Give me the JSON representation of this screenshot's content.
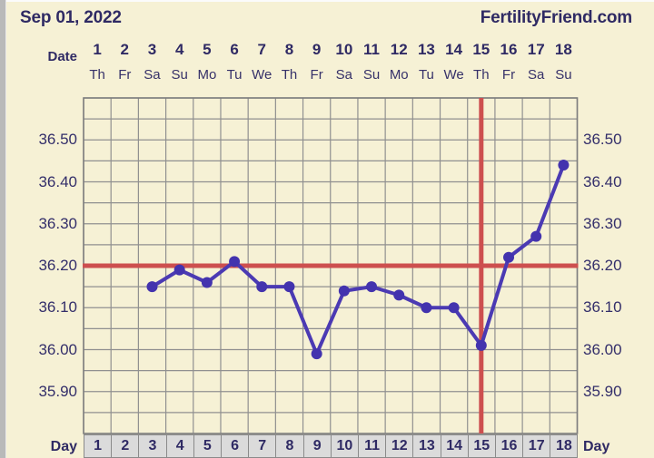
{
  "header": {
    "date_label": "Sep 01, 2022",
    "brand": "FertilityFriend.com"
  },
  "date_row": {
    "label": "Date",
    "numbers": [
      "1",
      "2",
      "3",
      "4",
      "5",
      "6",
      "7",
      "8",
      "9",
      "10",
      "11",
      "12",
      "13",
      "14",
      "15",
      "16",
      "17",
      "18"
    ],
    "weekdays": [
      "Th",
      "Fr",
      "Sa",
      "Su",
      "Mo",
      "Tu",
      "We",
      "Th",
      "Fr",
      "Sa",
      "Su",
      "Mo",
      "Tu",
      "We",
      "Th",
      "Fr",
      "Sa",
      "Su"
    ]
  },
  "y_axis": {
    "left_labels": [
      "36.50",
      "36.40",
      "36.30",
      "36.20",
      "36.10",
      "36.00",
      "35.90"
    ],
    "right_labels": [
      "36.50",
      "36.40",
      "36.30",
      "36.20",
      "36.10",
      "36.00",
      "35.90"
    ],
    "label_values": [
      36.5,
      36.4,
      36.3,
      36.2,
      36.1,
      36.0,
      35.9
    ]
  },
  "footer": {
    "label_left": "Day",
    "label_right": "Day",
    "numbers": [
      "1",
      "2",
      "3",
      "4",
      "5",
      "6",
      "7",
      "8",
      "9",
      "10",
      "11",
      "12",
      "13",
      "14",
      "15",
      "16",
      "17",
      "18"
    ]
  },
  "chart_data": {
    "type": "line",
    "days_in_view": 18,
    "x": [
      3,
      4,
      5,
      6,
      7,
      8,
      9,
      10,
      11,
      12,
      13,
      14,
      15,
      16,
      17,
      18
    ],
    "values": [
      36.15,
      36.19,
      36.16,
      36.21,
      36.15,
      36.15,
      35.99,
      36.14,
      36.15,
      36.13,
      36.1,
      36.1,
      36.01,
      36.22,
      36.27,
      36.44
    ],
    "coverline": 36.2,
    "ovulation_line_day": 15,
    "ylim": [
      35.8,
      36.6
    ],
    "y_grid_step": 0.05,
    "y_tick_step": 0.1,
    "grid": true,
    "legend": "none"
  },
  "colors": {
    "background": "#f6f1d5",
    "text": "#2f2a64",
    "grid": "#909090",
    "grid_border": "#7e7e7e",
    "red_line": "#cd4f4f",
    "series": "#4b3ab3",
    "marker": "#4333ae",
    "footer_cell_bg": "#dbdbdb",
    "footer_cell_border": "#8a8a8a"
  }
}
